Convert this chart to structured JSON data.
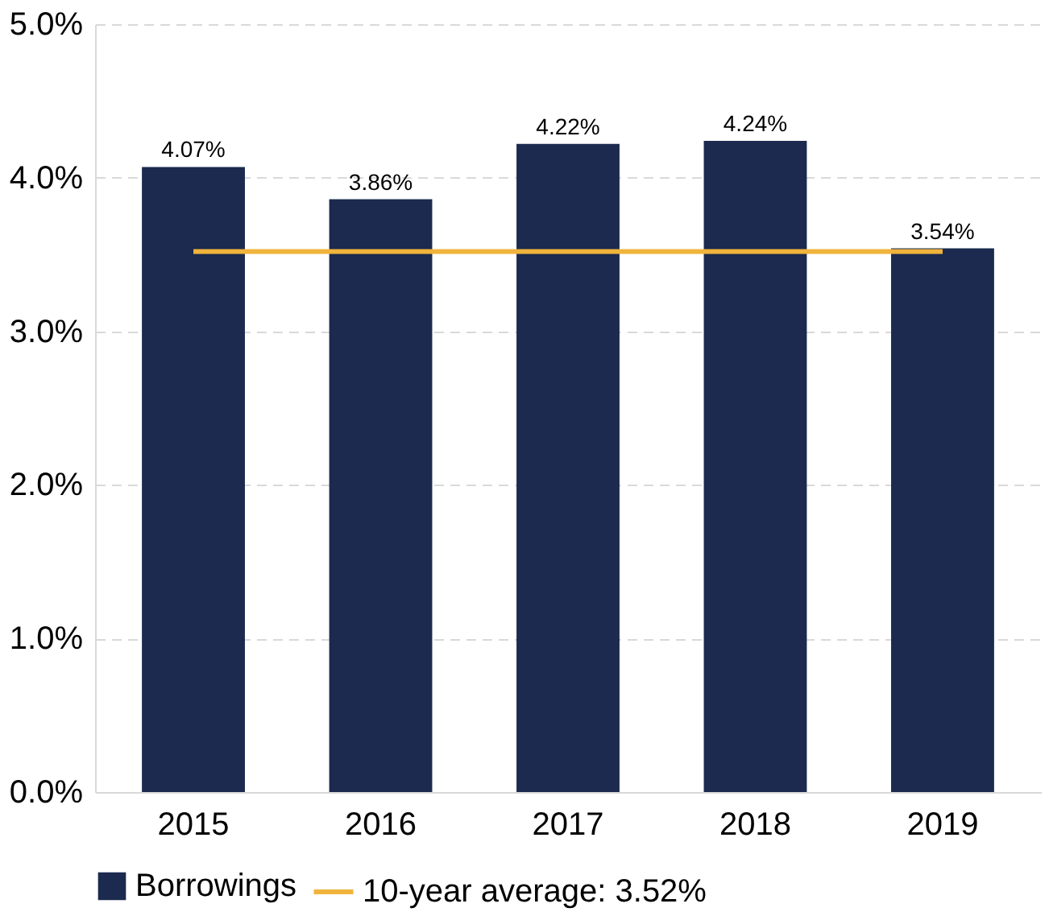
{
  "chart_data": {
    "type": "bar",
    "categories": [
      "2015",
      "2016",
      "2017",
      "2018",
      "2019"
    ],
    "series": [
      {
        "name": "Borrowings",
        "type": "bar",
        "color": "#1b2a4e",
        "values": [
          4.07,
          3.86,
          4.22,
          4.24,
          3.54
        ],
        "value_labels": [
          "4.07%",
          "3.86%",
          "4.22%",
          "4.24%",
          "3.54%"
        ]
      },
      {
        "name": "10-year average: 3.52%",
        "type": "line",
        "color": "#f0b43c",
        "values": [
          3.52,
          3.52,
          3.52,
          3.52,
          3.52
        ]
      }
    ],
    "ylim": [
      0,
      5
    ],
    "yticks": [
      {
        "value": 0,
        "label": "0.0%"
      },
      {
        "value": 1,
        "label": "1.0%"
      },
      {
        "value": 2,
        "label": "2.0%"
      },
      {
        "value": 3,
        "label": "3.0%"
      },
      {
        "value": 4,
        "label": "4.0%"
      },
      {
        "value": 5,
        "label": "5.0%"
      }
    ],
    "grid": "y",
    "legend": "bottom"
  }
}
